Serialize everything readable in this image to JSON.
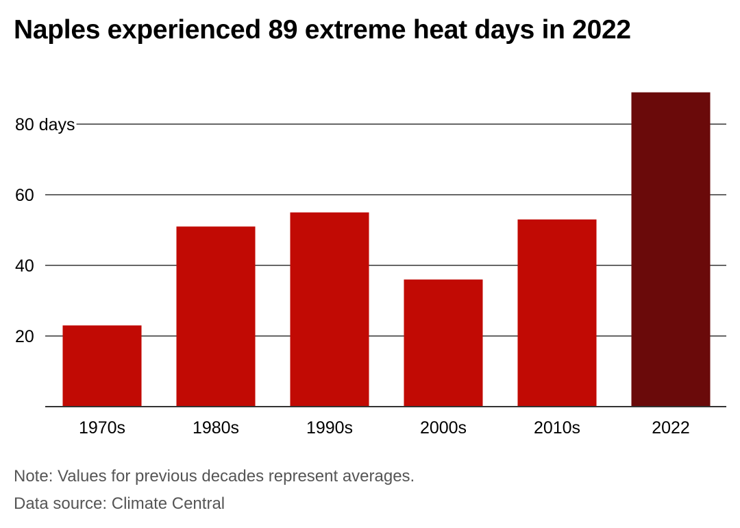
{
  "chart_data": {
    "type": "bar",
    "title": "Naples experienced 89 extreme heat days in 2022",
    "categories": [
      "1970s",
      "1980s",
      "1990s",
      "2000s",
      "2010s",
      "2022"
    ],
    "values": [
      23,
      51,
      55,
      36,
      53,
      89
    ],
    "yticks": [
      20,
      40,
      60,
      80
    ],
    "ytick_labels": [
      "20",
      "40",
      "60",
      "80 days"
    ],
    "ylim": [
      0,
      89
    ],
    "grid": true,
    "colors": {
      "bar": "#c10a04",
      "highlight_bar": "#6a0a0a",
      "gridline": "#333333",
      "axis": "#333333"
    },
    "highlight_index": 5
  },
  "notes": {
    "note": "Note: Values for previous decades represent averages.",
    "source": "Data source: Climate Central"
  }
}
